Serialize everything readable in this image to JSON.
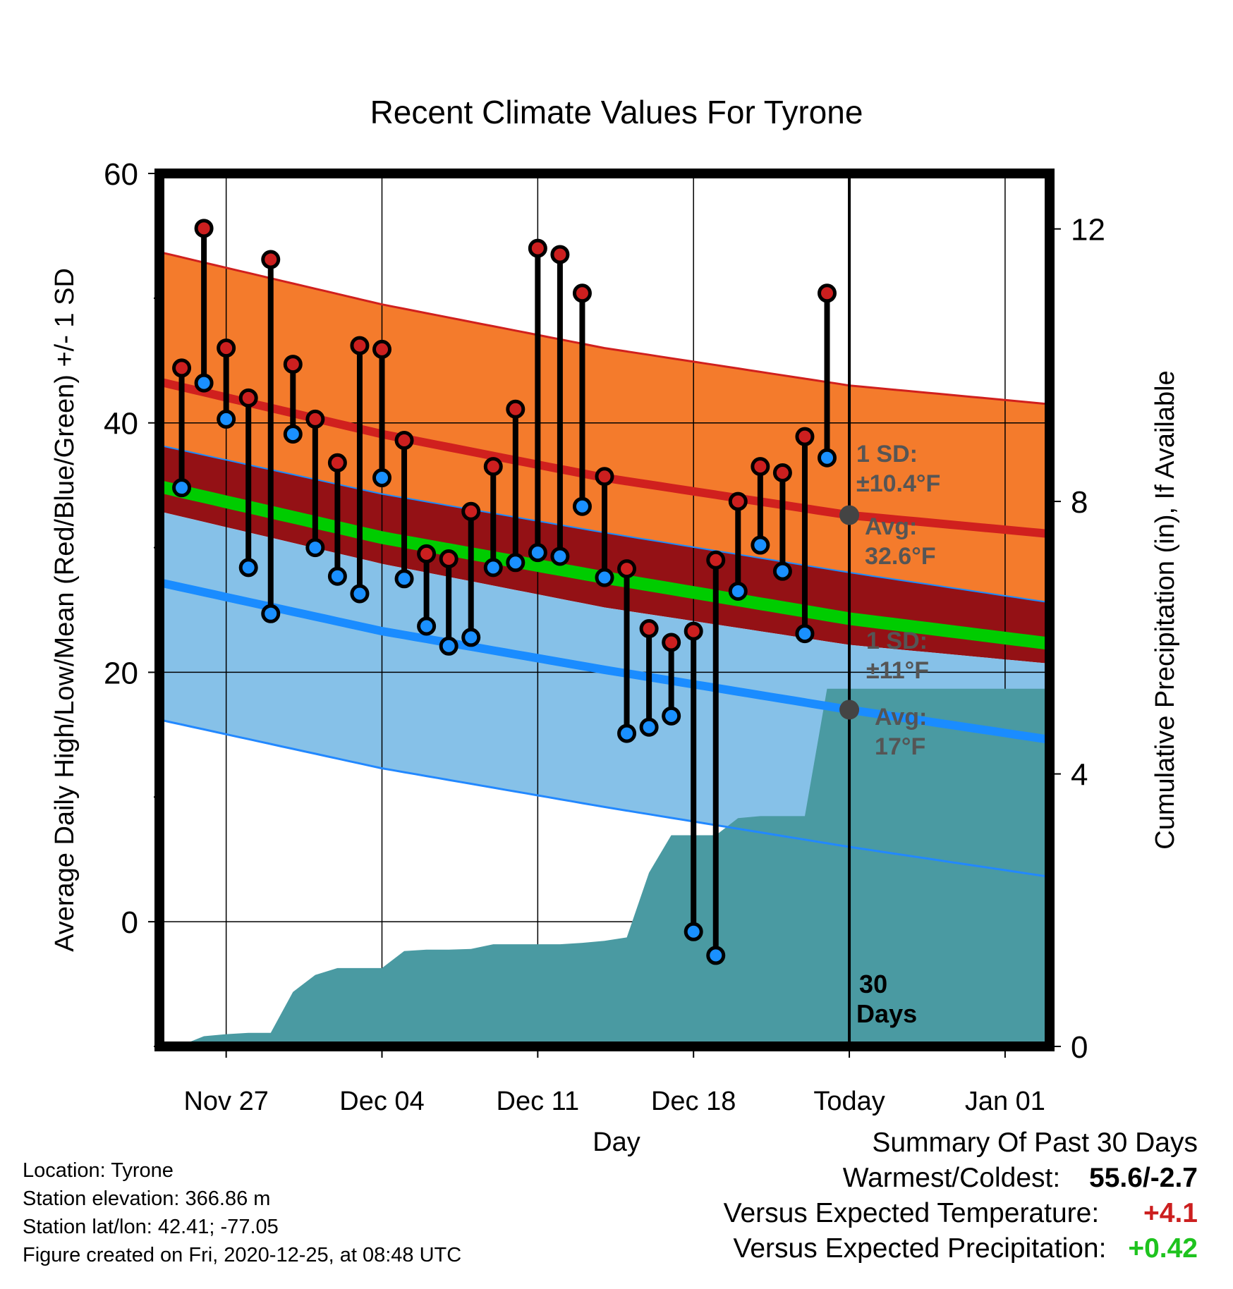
{
  "chart_data": {
    "type": "line",
    "title": "Recent Climate Values For Tyrone",
    "xlabel": "Day",
    "ylabel": "Average Daily High/Low/Mean (Red/Blue/Green) +/- 1 SD",
    "y2label": "Cumulative Precipitation (in), If Available",
    "ylim": [
      -10,
      60
    ],
    "y2lim": [
      0,
      12
    ],
    "y_ticks": [
      0,
      20,
      40,
      60
    ],
    "y2_ticks": [
      0,
      4,
      8,
      12
    ],
    "x_range": [
      "2020-11-24",
      "2021-01-03"
    ],
    "x_ticks": [
      {
        "date": "2020-11-27",
        "label": "Nov 27"
      },
      {
        "date": "2020-12-04",
        "label": "Dec 04"
      },
      {
        "date": "2020-12-11",
        "label": "Dec 11"
      },
      {
        "date": "2020-12-18",
        "label": "Dec 18"
      },
      {
        "date": "2020-12-25",
        "label": "Today"
      },
      {
        "date": "2021-01-01",
        "label": "Jan 01"
      }
    ],
    "grid": true,
    "today": "2020-12-25",
    "days_label": "30\nDays",
    "colors": {
      "high_band": "#f47b2c",
      "high_line": "#d0201e",
      "mid_band": "#941115",
      "mean_line": "#00cc00",
      "low_band": "#86c1e8",
      "low_line": "#1a8cff",
      "low_edge": "#2288ff",
      "precip": "#4a9aa2",
      "high_marker": "#cc1f1f",
      "low_marker": "#1a90ff",
      "avg_marker": "#444444",
      "annotation_text": "#555555"
    },
    "normals": {
      "dates": [
        "2020-11-24",
        "2020-12-04",
        "2020-12-14",
        "2020-12-25",
        "2021-01-03"
      ],
      "high_avg": [
        43.3,
        39.1,
        35.6,
        32.6,
        31.1
      ],
      "high_sd": 10.4,
      "mean_avg": [
        34.9,
        30.8,
        27.6,
        24.3,
        22.3
      ],
      "low_avg": [
        27.2,
        23.3,
        20.2,
        17.0,
        14.6
      ],
      "low_sd": 11
    },
    "series": [
      {
        "name": "High",
        "dates": [
          "2020-11-25",
          "2020-11-26",
          "2020-11-27",
          "2020-11-28",
          "2020-11-29",
          "2020-11-30",
          "2020-12-01",
          "2020-12-02",
          "2020-12-03",
          "2020-12-04",
          "2020-12-05",
          "2020-12-06",
          "2020-12-07",
          "2020-12-08",
          "2020-12-09",
          "2020-12-10",
          "2020-12-11",
          "2020-12-12",
          "2020-12-13",
          "2020-12-14",
          "2020-12-15",
          "2020-12-16",
          "2020-12-17",
          "2020-12-18",
          "2020-12-19",
          "2020-12-20",
          "2020-12-21",
          "2020-12-22",
          "2020-12-23",
          "2020-12-24"
        ],
        "values": [
          44.4,
          55.6,
          46.0,
          42.0,
          53.1,
          44.7,
          40.3,
          36.8,
          46.2,
          45.9,
          38.6,
          29.5,
          29.1,
          32.9,
          36.5,
          41.1,
          54.0,
          53.5,
          50.4,
          35.7,
          28.3,
          23.5,
          22.4,
          23.3,
          29.0,
          33.7,
          36.5,
          36.0,
          38.9,
          50.4
        ]
      },
      {
        "name": "Low",
        "dates": [
          "2020-11-25",
          "2020-11-26",
          "2020-11-27",
          "2020-11-28",
          "2020-11-29",
          "2020-11-30",
          "2020-12-01",
          "2020-12-02",
          "2020-12-03",
          "2020-12-04",
          "2020-12-05",
          "2020-12-06",
          "2020-12-07",
          "2020-12-08",
          "2020-12-09",
          "2020-12-10",
          "2020-12-11",
          "2020-12-12",
          "2020-12-13",
          "2020-12-14",
          "2020-12-15",
          "2020-12-16",
          "2020-12-17",
          "2020-12-18",
          "2020-12-19",
          "2020-12-20",
          "2020-12-21",
          "2020-12-22",
          "2020-12-23",
          "2020-12-24"
        ],
        "values": [
          34.8,
          43.2,
          40.3,
          28.4,
          24.7,
          39.1,
          30.0,
          27.7,
          26.3,
          35.6,
          27.5,
          23.7,
          22.1,
          22.8,
          28.4,
          28.8,
          29.6,
          29.3,
          33.3,
          27.6,
          15.1,
          15.6,
          16.5,
          -0.8,
          -2.7,
          26.5,
          30.2,
          28.1,
          23.1,
          37.2
        ]
      },
      {
        "name": "Cumulative Precipitation",
        "dates": [
          "2020-11-24",
          "2020-11-25",
          "2020-11-26",
          "2020-11-27",
          "2020-11-28",
          "2020-11-29",
          "2020-11-30",
          "2020-12-01",
          "2020-12-02",
          "2020-12-03",
          "2020-12-04",
          "2020-12-05",
          "2020-12-06",
          "2020-12-07",
          "2020-12-08",
          "2020-12-09",
          "2020-12-10",
          "2020-12-11",
          "2020-12-12",
          "2020-12-13",
          "2020-12-14",
          "2020-12-15",
          "2020-12-16",
          "2020-12-17",
          "2020-12-18",
          "2020-12-19",
          "2020-12-20",
          "2020-12-21",
          "2020-12-22",
          "2020-12-23",
          "2020-12-24",
          "2020-12-25",
          "2021-01-03"
        ],
        "values": [
          0.02,
          0.02,
          0.15,
          0.18,
          0.2,
          0.2,
          0.8,
          1.05,
          1.15,
          1.15,
          1.15,
          1.4,
          1.42,
          1.42,
          1.43,
          1.5,
          1.5,
          1.5,
          1.5,
          1.52,
          1.55,
          1.6,
          2.55,
          3.1,
          3.1,
          3.1,
          3.35,
          3.38,
          3.38,
          3.38,
          5.25,
          5.25,
          5.25
        ]
      }
    ],
    "annotations": {
      "high_sd_label": "1 SD:",
      "high_sd_value": "±10.4°F",
      "high_avg_label": "Avg:",
      "high_avg_value": "32.6°F",
      "low_sd_label": "1 SD:",
      "low_sd_value": "±11°F",
      "low_avg_label": "Avg:",
      "low_avg_value": "17°F"
    }
  },
  "station_info": {
    "location": "Location: Tyrone",
    "elevation": "Station elevation: 366.86 m",
    "latlon": "Station lat/lon: 42.41; -77.05",
    "created": "Figure created on Fri, 2020-12-25, at 08:48 UTC"
  },
  "summary": {
    "heading": "Summary Of Past 30 Days",
    "warmest_coldest_label": "Warmest/Coldest:",
    "warmest_coldest_value": "55.6/-2.7",
    "temp_label": "Versus Expected Temperature:",
    "temp_value": "+4.1",
    "temp_color": "#cc1f1f",
    "precip_label": "Versus Expected Precipitation:",
    "precip_value": "+0.42",
    "precip_color": "#1ec31e"
  }
}
